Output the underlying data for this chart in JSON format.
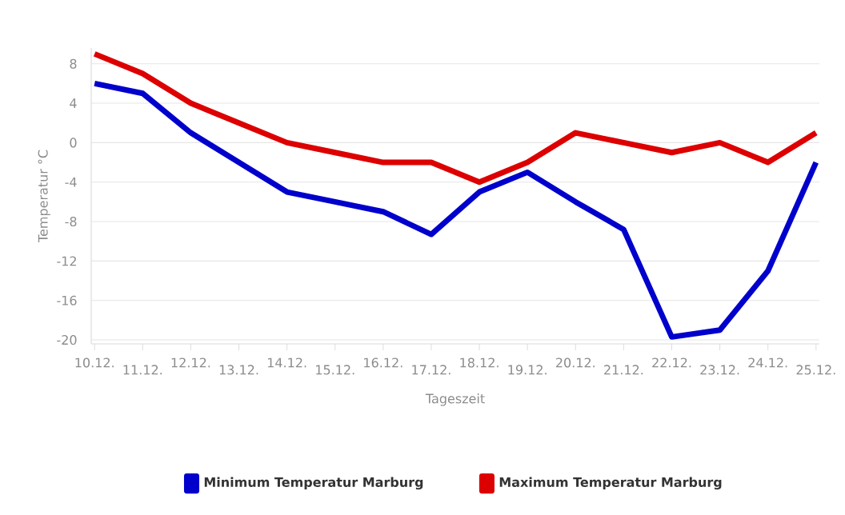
{
  "chart_data": {
    "type": "line",
    "xlabel": "Tageszeit",
    "ylabel": "Temperatur °C",
    "categories": [
      "10.12.",
      "11.12.",
      "12.12.",
      "13.12.",
      "14.12.",
      "15.12.",
      "16.12.",
      "17.12.",
      "18.12.",
      "19.12.",
      "20.12.",
      "21.12.",
      "22.12.",
      "23.12.",
      "24.12.",
      "25.12."
    ],
    "series": [
      {
        "name": "Minimum Temperatur Marburg",
        "color": "#0000cc",
        "values": [
          6,
          5,
          1,
          -2,
          -5,
          -6,
          -7,
          -9.3,
          -5,
          -3,
          -6,
          -8.8,
          -19.7,
          -19,
          -13,
          -2
        ]
      },
      {
        "name": "Maximum Temperatur Marburg",
        "color": "#dd0000",
        "values": [
          9,
          7,
          4,
          2,
          0,
          -1,
          -2,
          -2,
          -4,
          -2,
          1,
          0,
          -1,
          0,
          -2,
          1
        ]
      }
    ],
    "ylim": [
      -20.4,
      9.6
    ],
    "yticks": [
      -20,
      -16,
      -12,
      -8,
      -4,
      0,
      4,
      8
    ],
    "grid": "y",
    "legend": "bottom",
    "line_style": "solid",
    "marker": "none"
  }
}
